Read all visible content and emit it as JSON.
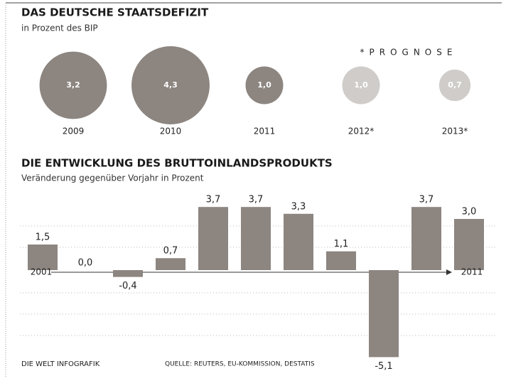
{
  "chart_data": [
    {
      "type": "bubble",
      "title": "DAS DEUTSCHE STAATSDEFIZIT",
      "subtitle": "in Prozent des BIP",
      "annotation": "*PROGNOSE",
      "categories": [
        "2009",
        "2010",
        "2011",
        "2012*",
        "2013*"
      ],
      "values": [
        3.2,
        4.3,
        1.0,
        1.0,
        0.7
      ],
      "value_labels": [
        "3,2",
        "4,3",
        "1,0",
        "1,0",
        "0,7"
      ],
      "colors": [
        "#8c8580",
        "#8c8580",
        "#8c8580",
        "#cfccc9",
        "#cfccc9"
      ]
    },
    {
      "type": "bar",
      "title": "DIE ENTWICKLUNG DES BRUTTOINLANDSPRODUKTS",
      "subtitle": "Veränderung gegenüber Vorjahr in Prozent",
      "categories": [
        "2001",
        null,
        null,
        null,
        null,
        null,
        null,
        null,
        null,
        null,
        "2011"
      ],
      "values": [
        1.5,
        0.0,
        -0.4,
        0.7,
        3.7,
        3.7,
        3.3,
        1.1,
        -5.1,
        3.7,
        3.0
      ],
      "value_labels": [
        "1,5",
        "0,0",
        "-0,4",
        "0,7",
        "3,7",
        "3,7",
        "3,3",
        "1,1",
        "-5,1",
        "3,7",
        "3,0"
      ],
      "color": "#8c8580",
      "ylim": [
        -5.5,
        4.5
      ]
    }
  ],
  "footer": {
    "brand": "DIE WELT INFOGRAFIK",
    "source": "QUELLE: REUTERS, EU-KOMMISSION, DESTATIS"
  }
}
